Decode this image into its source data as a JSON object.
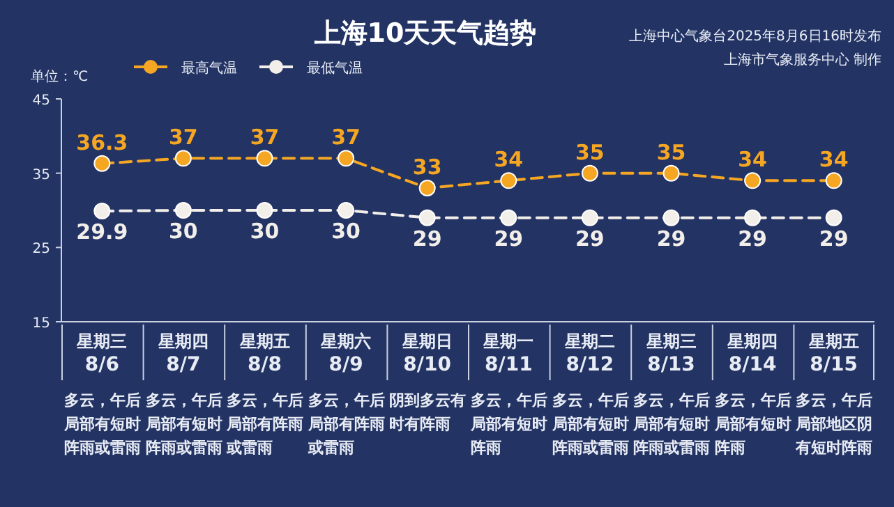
{
  "chart_data": {
    "type": "line",
    "title": "上海10天天气趋势",
    "ylabel": "单位：℃",
    "categories": [
      "星期三\n8/6",
      "星期四\n8/7",
      "星期五\n8/8",
      "星期六\n8/9",
      "星期日\n8/10",
      "星期一\n8/11",
      "星期二\n8/12",
      "星期三\n8/13",
      "星期四\n8/14",
      "星期五\n8/15"
    ],
    "series": [
      {
        "name": "最高气温",
        "color": "#f5a623",
        "values": [
          36.3,
          37,
          37,
          37,
          33,
          34,
          35,
          35,
          34,
          34
        ]
      },
      {
        "name": "最低气温",
        "color": "#f2eeea",
        "values": [
          29.9,
          30,
          30,
          30,
          29,
          29,
          29,
          29,
          29,
          29
        ]
      }
    ],
    "ylim": [
      15,
      45
    ],
    "yticks": [
      15,
      25,
      35,
      45
    ],
    "data_labels": true,
    "legend": "top",
    "marker": "circle",
    "line_style": "dashed",
    "grid": false,
    "annotations": [
      "上海中心气象台2025年8月6日16时发布",
      "上海市气象服务中心 制作",
      "多云，午后局部有短时阵雨或雷雨",
      "多云，午后局部有短时阵雨或雷雨",
      "多云，午后局部有阵雨或雷雨",
      "多云，午后局部有阵雨或雷雨",
      "阴到多云有时有阵雨",
      "多云，午后局部有短时阵雨",
      "多云，午后局部有短时阵雨或雷雨",
      "多云，午后局部有短时阵雨或雷雨",
      "多云，午后局部有短时阵雨",
      "多云，午后局部地区阴有短时阵雨"
    ]
  }
}
